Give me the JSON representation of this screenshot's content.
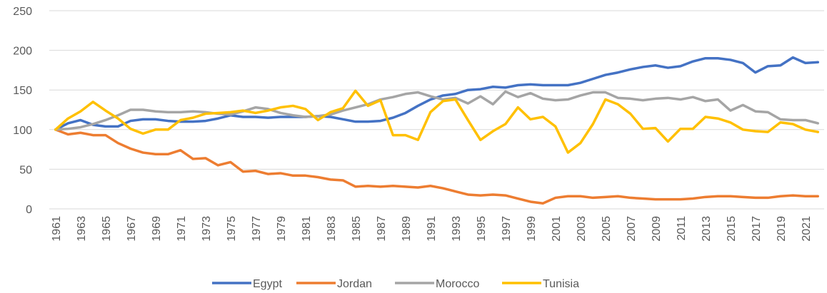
{
  "chart_data": {
    "type": "line",
    "categories": [
      "1961",
      null,
      "1963",
      null,
      "1965",
      null,
      "1967",
      null,
      "1969",
      null,
      "1971",
      null,
      "1973",
      null,
      "1975",
      null,
      "1977",
      null,
      "1979",
      null,
      "1981",
      null,
      "1983",
      null,
      "1985",
      null,
      "1987",
      null,
      "1989",
      null,
      "1991",
      null,
      "1993",
      null,
      "1995",
      null,
      "1997",
      null,
      "1999",
      null,
      "2001",
      null,
      "2003",
      null,
      "2005",
      null,
      "2007",
      null,
      "2009",
      null,
      "2011",
      null,
      "2013",
      null,
      "2015",
      null,
      "2017",
      null,
      "2019",
      null,
      "2021",
      null
    ],
    "series": [
      {
        "name": "Egypt",
        "color": "#4472c4",
        "values": [
          100,
          108,
          112,
          106,
          104,
          104,
          111,
          113,
          113,
          111,
          110,
          110,
          111,
          114,
          118,
          116,
          116,
          115,
          116,
          116,
          116,
          117,
          116,
          113,
          110,
          110,
          111,
          115,
          121,
          130,
          138,
          143,
          145,
          150,
          151,
          154,
          153,
          156,
          157,
          156,
          156,
          156,
          159,
          164,
          169,
          172,
          176,
          179,
          181,
          178,
          180,
          186,
          190,
          190,
          188,
          184,
          172,
          180,
          181,
          191,
          184,
          185
        ]
      },
      {
        "name": "Jordan",
        "color": "#ed7d31",
        "values": [
          100,
          94,
          96,
          93,
          93,
          83,
          76,
          71,
          69,
          69,
          74,
          63,
          64,
          55,
          59,
          47,
          48,
          44,
          45,
          42,
          42,
          40,
          37,
          36,
          28,
          29,
          28,
          29,
          28,
          27,
          29,
          26,
          22,
          18,
          17,
          18,
          17,
          13,
          9,
          7,
          14,
          16,
          16,
          14,
          15,
          16,
          14,
          13,
          12,
          12,
          12,
          13,
          15,
          16,
          16,
          15,
          14,
          14,
          16,
          17,
          16,
          16
        ]
      },
      {
        "name": "Morocco",
        "color": "#a5a5a5",
        "values": [
          100,
          101,
          103,
          107,
          112,
          118,
          125,
          125,
          123,
          122,
          122,
          123,
          122,
          120,
          119,
          123,
          128,
          126,
          121,
          118,
          116,
          117,
          119,
          124,
          128,
          132,
          138,
          141,
          145,
          147,
          142,
          138,
          140,
          133,
          142,
          132,
          148,
          141,
          146,
          139,
          137,
          138,
          143,
          147,
          147,
          140,
          139,
          137,
          139,
          140,
          138,
          141,
          136,
          138,
          124,
          131,
          123,
          122,
          113,
          112,
          112,
          108
        ]
      },
      {
        "name": "Tunisia",
        "color": "#ffc000",
        "values": [
          100,
          114,
          123,
          135,
          124,
          114,
          101,
          95,
          100,
          100,
          112,
          115,
          120,
          121,
          122,
          124,
          121,
          124,
          128,
          130,
          126,
          112,
          122,
          127,
          149,
          130,
          137,
          93,
          93,
          87,
          122,
          136,
          138,
          112,
          87,
          98,
          107,
          128,
          113,
          116,
          104,
          71,
          83,
          107,
          138,
          132,
          120,
          101,
          102,
          85,
          101,
          101,
          116,
          114,
          109,
          100,
          98,
          97,
          109,
          107,
          100,
          97
        ]
      }
    ],
    "ylim": [
      0,
      250
    ],
    "yticks": [
      0,
      50,
      100,
      150,
      200,
      250
    ],
    "grid": true,
    "legend": "bottom"
  }
}
